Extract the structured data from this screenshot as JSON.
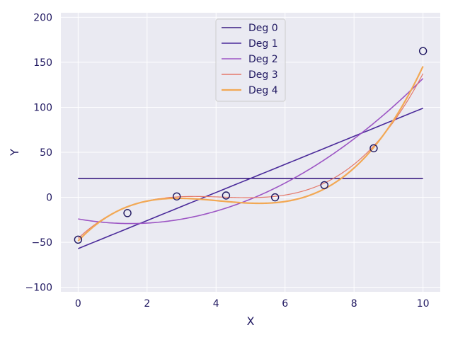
{
  "chart_data": {
    "type": "line",
    "xlabel": "X",
    "ylabel": "Y",
    "xlim": [
      -0.5,
      10.5
    ],
    "ylim": [
      -105,
      205
    ],
    "xticks": [
      0,
      2,
      4,
      6,
      8,
      10
    ],
    "yticks": [
      -100,
      -50,
      0,
      50,
      100,
      150,
      200
    ],
    "grid": true,
    "legend_position": "top-center",
    "scatter_points": {
      "x": [
        0,
        1.43,
        2.86,
        4.29,
        5.71,
        7.14,
        8.57,
        10
      ],
      "y": [
        -47,
        -17.5,
        1,
        2,
        0,
        13.5,
        54.5,
        162.5
      ]
    },
    "series": [
      {
        "name": "Deg 0",
        "color": "#3b1d82",
        "coeffs": [
          21
        ]
      },
      {
        "name": "Deg 1",
        "color": "#4a2a9a",
        "coeffs": [
          -57,
          15.6
        ]
      },
      {
        "name": "Deg 2",
        "color": "#9c55c4",
        "coeffs": [
          -24,
          -6.8,
          2.24
        ]
      },
      {
        "name": "Deg 3",
        "color": "#e4786a",
        "coeffs": [
          -45.6,
          35.8,
          -8.95,
          0.72
        ]
      },
      {
        "name": "Deg 4",
        "color": "#f2a854",
        "coeffs": [
          -48.5,
          40.4,
          -11.0,
          0.95,
          -0.006
        ]
      }
    ]
  }
}
